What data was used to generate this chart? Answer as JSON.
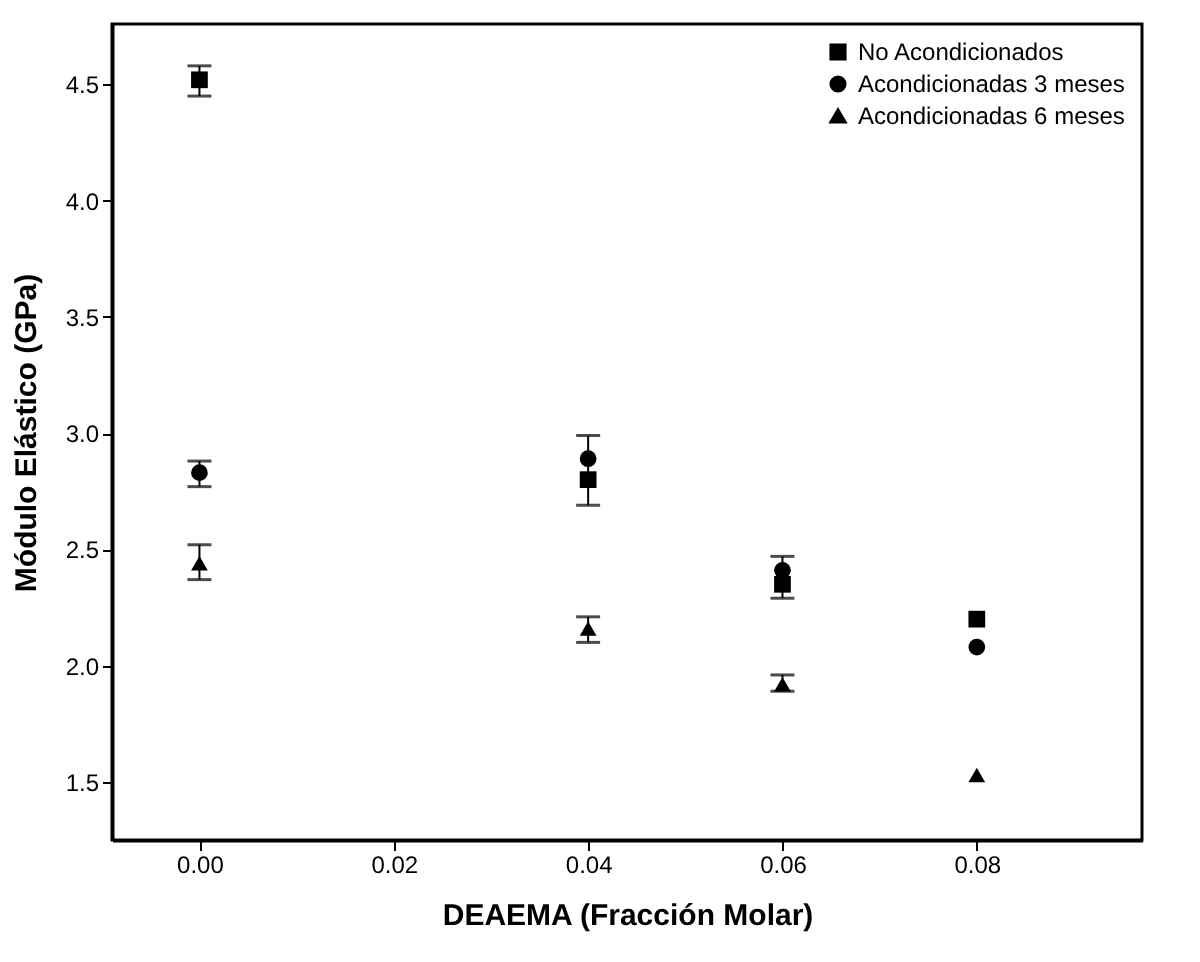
{
  "chart_data": {
    "type": "scatter",
    "xlabel": "DEAEMA (Fracción Molar)",
    "ylabel": "Módulo Elástico (GPa)",
    "x": [
      0,
      0.04,
      0.06,
      0.08
    ],
    "series": [
      {
        "name": "No Acondicionados",
        "color": "#000000",
        "marker": "square",
        "values": [
          4.52,
          2.8,
          2.35,
          2.2
        ],
        "errors": [
          [
            4.45,
            4.58
          ],
          [
            2.69,
            2.99
          ],
          [
            2.29,
            2.47
          ],
          null
        ]
      },
      {
        "name": "Acondicionadas 3 meses",
        "color": "#000000",
        "marker": "circle",
        "values": [
          2.83,
          2.89,
          2.41,
          2.08
        ],
        "errors": [
          [
            2.77,
            2.88
          ],
          null,
          null,
          null
        ]
      },
      {
        "name": "Acondicionadas 6 meses",
        "color": "#000000",
        "marker": "triangle",
        "values": [
          2.44,
          2.16,
          1.92,
          1.53
        ],
        "errors": [
          [
            2.37,
            2.52
          ],
          [
            2.1,
            2.21
          ],
          [
            1.89,
            1.96
          ],
          null
        ]
      }
    ],
    "xlim": [
      -0.009,
      0.097
    ],
    "xticks": [
      {
        "value": 0,
        "label": "0.00"
      },
      {
        "value": 0.02,
        "label": "0.02"
      },
      {
        "value": 0.04,
        "label": "0.04"
      },
      {
        "value": 0.06,
        "label": "0.06"
      },
      {
        "value": 0.08,
        "label": "0.08"
      }
    ],
    "ylim": [
      1.25,
      4.76
    ],
    "yticks": [
      {
        "value": 1.5,
        "label": "1.5"
      },
      {
        "value": 2,
        "label": "2.0"
      },
      {
        "value": 2.5,
        "label": "2.5"
      },
      {
        "value": 3,
        "label": "3.0"
      },
      {
        "value": 3.5,
        "label": "3.5"
      },
      {
        "value": 4,
        "label": "4.0"
      },
      {
        "value": 4.5,
        "label": "4.5"
      }
    ],
    "legend": "top right",
    "grid": false
  }
}
